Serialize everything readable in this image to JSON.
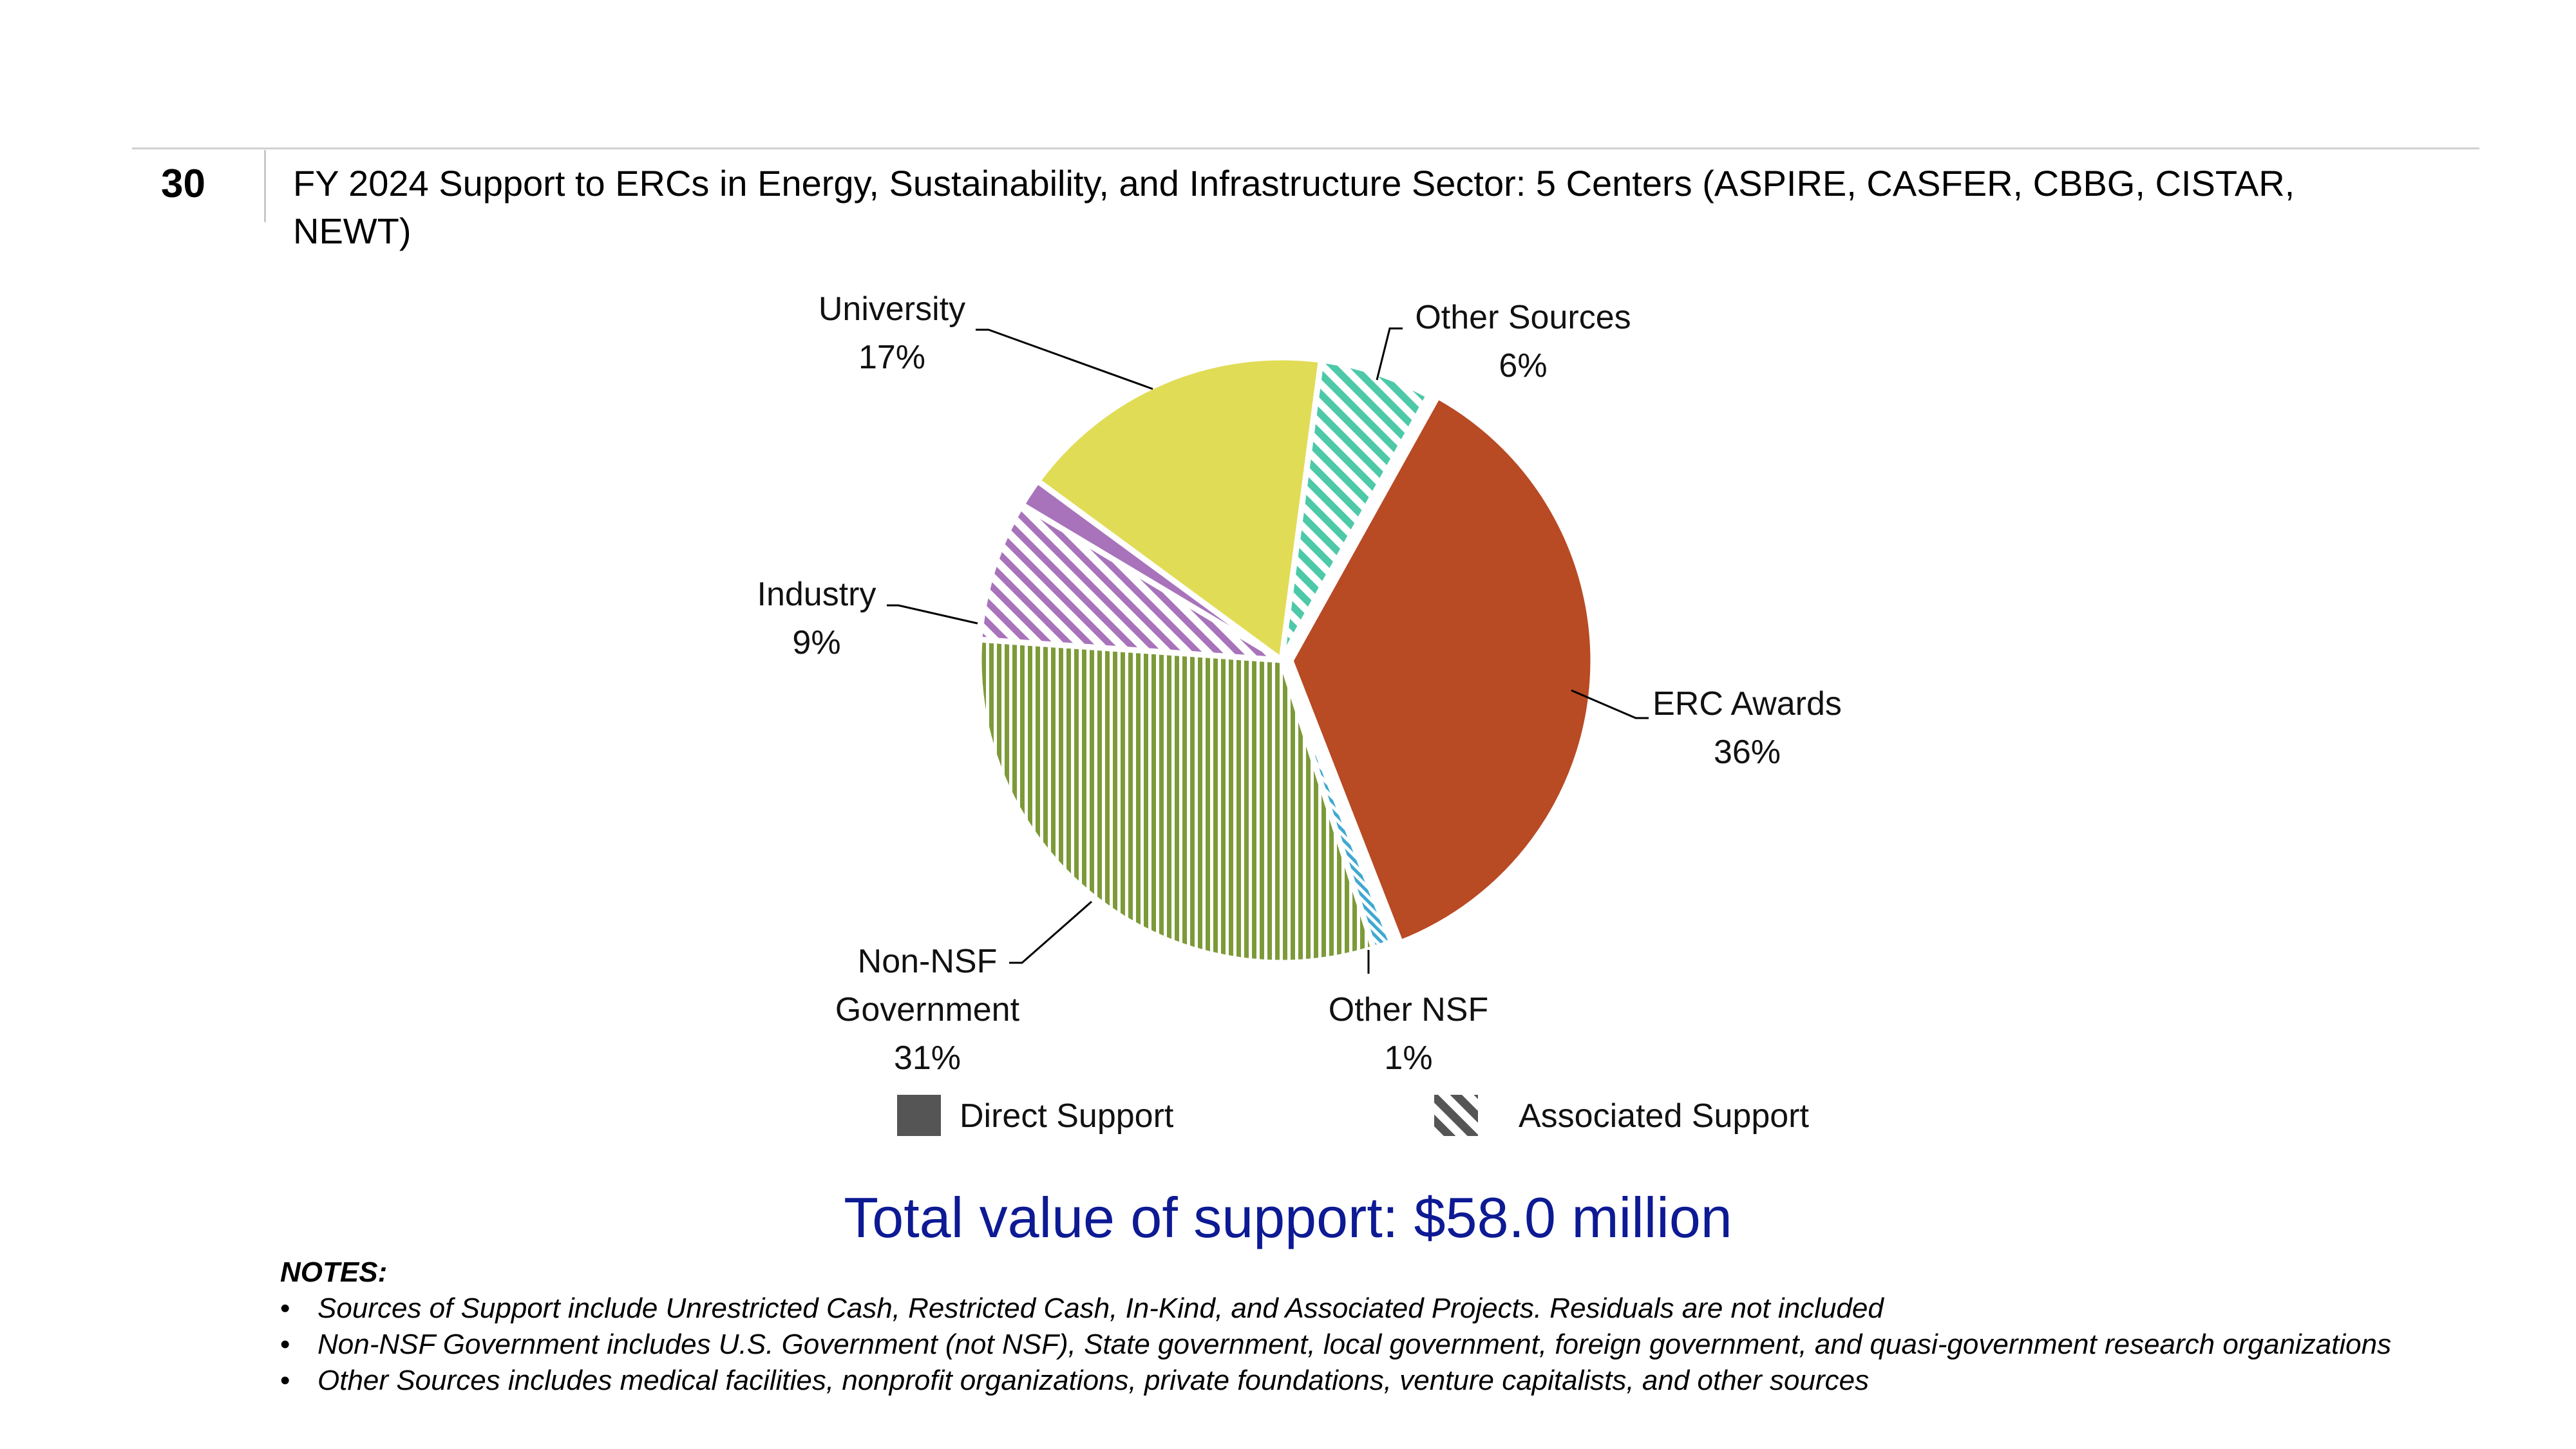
{
  "slide_number": "30",
  "title": "FY 2024 Support to ERCs in Energy, Sustainability, and Infrastructure Sector: 5 Centers (ASPIRE, CASFER, CBBG, CISTAR, NEWT)",
  "total_text": "Total value of support: $58.0 million",
  "notes": {
    "heading": "NOTES:",
    "items": [
      "Sources of Support include Unrestricted Cash, Restricted Cash, In-Kind, and Associated Projects. Residuals are not included",
      "Non-NSF Government includes U.S. Government (not NSF), State government, local government, foreign government, and quasi-government research organizations",
      "Other Sources includes medical facilities, nonprofit organizations, private foundations, venture capitalists, and other sources"
    ]
  },
  "legend": {
    "direct": "Direct Support",
    "associated": "Associated Support"
  },
  "chart_data": {
    "type": "pie",
    "title": "",
    "slices": [
      {
        "category": "Other Sources",
        "percent_label": "6%",
        "value": 6,
        "support": "Associated Support",
        "color": "#4dc9a8"
      },
      {
        "category": "ERC Awards",
        "percent_label": "36%",
        "value": 36,
        "support": "Direct Support",
        "color": "#b84a24"
      },
      {
        "category": "Other NSF",
        "percent_label": "1%",
        "value": 1,
        "support": "Associated Support",
        "color": "#3fa8d0"
      },
      {
        "category": "Non-NSF Government",
        "percent_label": "31%",
        "value": 31,
        "support": "Associated Support",
        "color": "#7d9a38"
      },
      {
        "category": "Industry",
        "percent_label": "9%",
        "value": 7.5,
        "support": "Associated Support",
        "color": "#a873bb"
      },
      {
        "category": "Industry",
        "percent_label": "9%",
        "value": 1.5,
        "support": "Direct Support",
        "color": "#a873bb"
      },
      {
        "category": "University",
        "percent_label": "17%",
        "value": 17,
        "support": "Direct Support",
        "color": "#e1dc55"
      }
    ],
    "labels": [
      {
        "name": "University",
        "pct": "17%"
      },
      {
        "name": "Other Sources",
        "pct": "6%"
      },
      {
        "name": "Industry",
        "pct": "9%"
      },
      {
        "name": "ERC Awards",
        "pct": "36%"
      },
      {
        "name": "Non-NSF",
        "name2": "Government",
        "pct": "31%"
      },
      {
        "name": "Other NSF",
        "pct": "1%"
      }
    ]
  }
}
